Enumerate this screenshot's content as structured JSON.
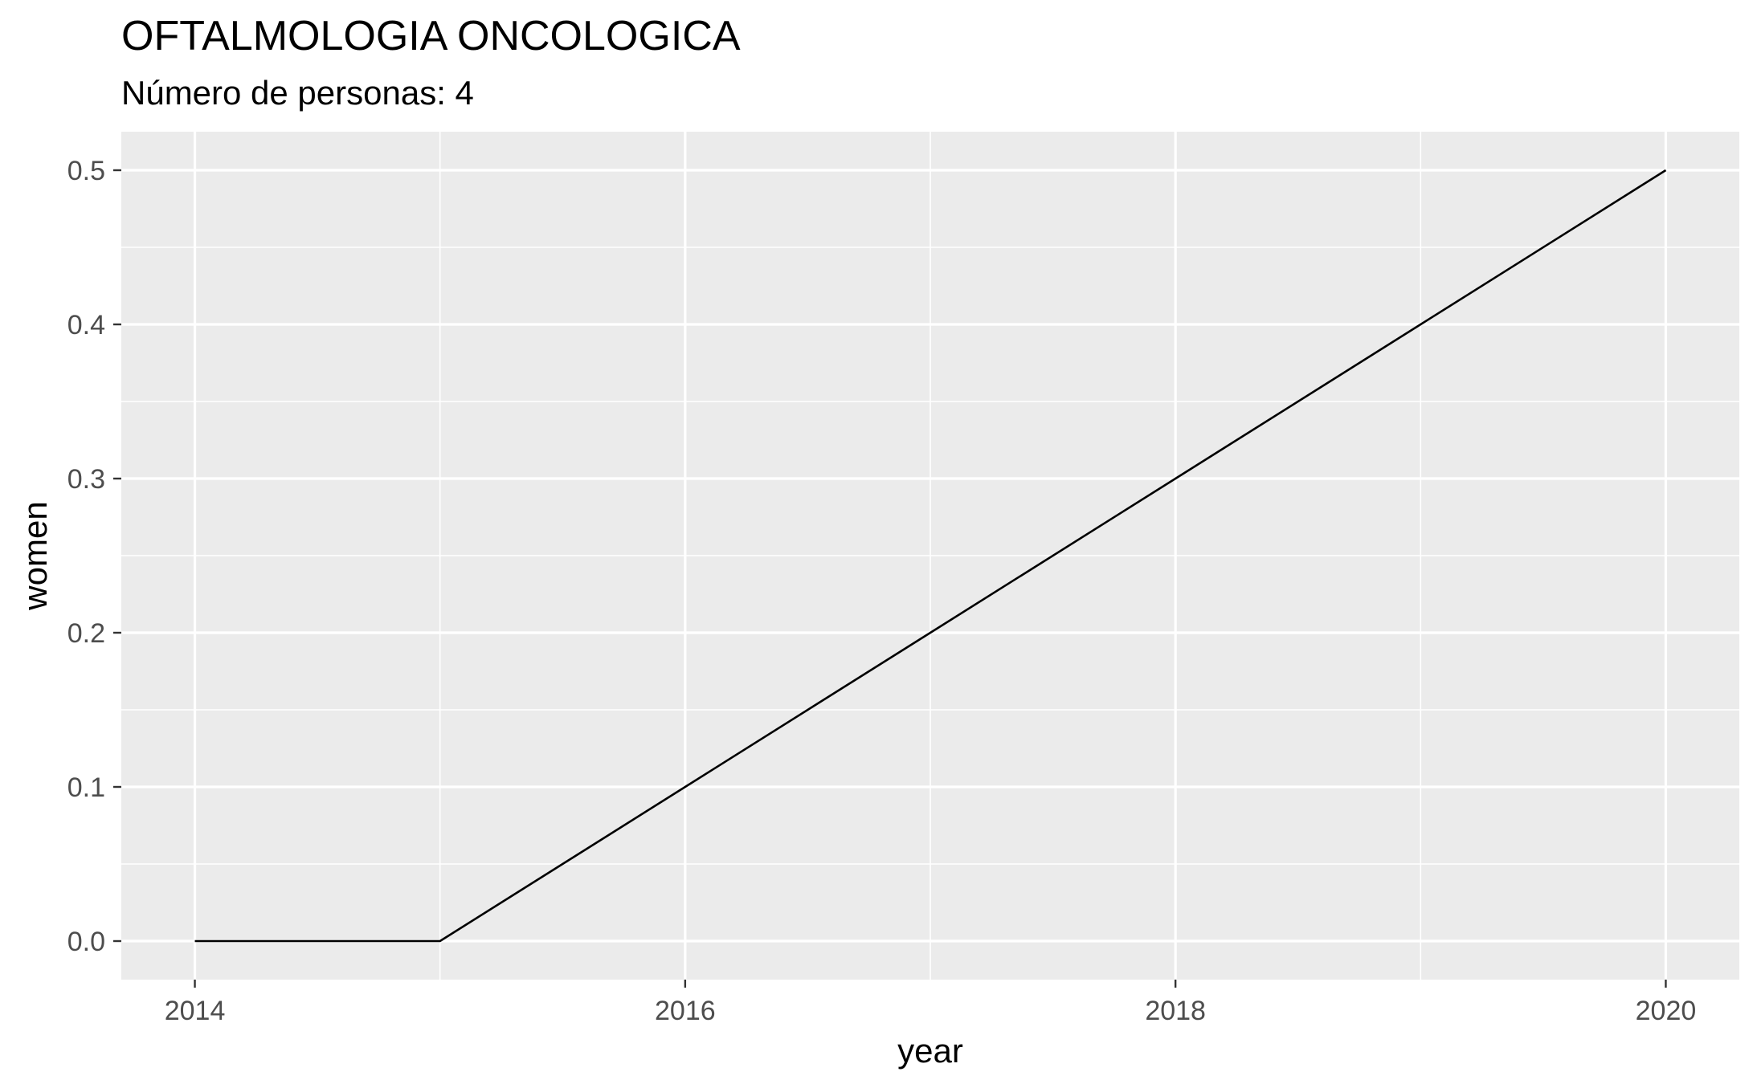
{
  "chart_data": {
    "type": "line",
    "title": "OFTALMOLOGIA ONCOLOGICA",
    "subtitle": "Número de personas: 4",
    "xlabel": "year",
    "ylabel": "women",
    "x": [
      2014,
      2015,
      2016,
      2017,
      2018,
      2019,
      2020
    ],
    "series": [
      {
        "values": [
          0.0,
          0.0,
          0.1,
          0.2,
          0.3,
          0.4,
          0.5
        ],
        "color": "#000000"
      }
    ],
    "xlim": [
      2013.7,
      2020.3
    ],
    "ylim": [
      -0.025,
      0.525
    ],
    "x_major_ticks": [
      2014,
      2016,
      2018,
      2020
    ],
    "x_minor_ticks": [
      2015,
      2017,
      2019
    ],
    "y_major_ticks": [
      0.0,
      0.1,
      0.2,
      0.3,
      0.4,
      0.5
    ],
    "y_tick_labels": [
      "0.0",
      "0.1",
      "0.2",
      "0.3",
      "0.4",
      "0.5"
    ],
    "x_tick_labels": [
      "2014",
      "2016",
      "2018",
      "2020"
    ],
    "grid": true,
    "legend": "none",
    "panel_background": "#ebebeb",
    "grid_color": "#ffffff"
  }
}
